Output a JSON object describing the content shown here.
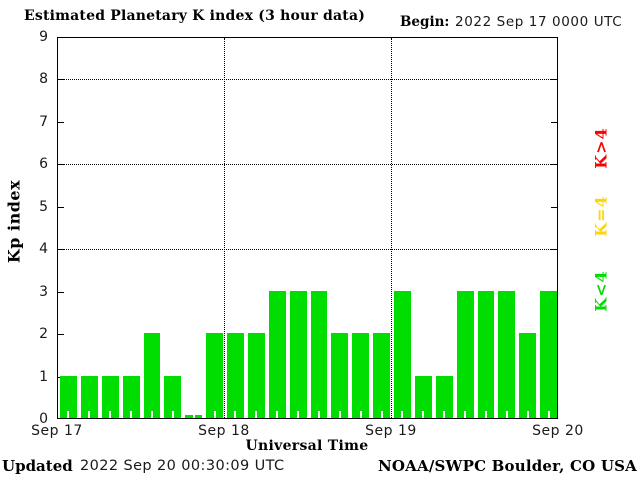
{
  "title": "Estimated Planetary K index (3 hour data)",
  "begin": {
    "label": "Begin:",
    "value": "2022 Sep 17 0000 UTC"
  },
  "footer": {
    "updated_label": "Updated",
    "updated_value": "2022 Sep 20 00:30:09 UTC",
    "credit": "NOAA/SWPC Boulder, CO USA"
  },
  "chart_data": {
    "type": "bar",
    "title": "Estimated Planetary K index (3 hour data)",
    "xlabel": "Universal Time",
    "ylabel": "Kp index",
    "ylim": [
      0,
      9
    ],
    "yticks": [
      0,
      1,
      2,
      3,
      4,
      5,
      6,
      7,
      8,
      9
    ],
    "grid_y_dotted": [
      4,
      6,
      8
    ],
    "grid_x_dotted_at_days": [
      1,
      2
    ],
    "x_tick_labels": [
      "Sep 17",
      "Sep 18",
      "Sep 19",
      "Sep 20"
    ],
    "hours_per_bar": 3,
    "bars_per_day": 8,
    "bar_color": "#00DD00",
    "days": [
      {
        "date": "Sep 17",
        "values": [
          1,
          1,
          1,
          1,
          2,
          1,
          0,
          2
        ]
      },
      {
        "date": "Sep 18",
        "values": [
          2,
          2,
          3,
          3,
          3,
          2,
          2,
          2
        ]
      },
      {
        "date": "Sep 19",
        "values": [
          3,
          1,
          1,
          3,
          3,
          3,
          2,
          3
        ]
      }
    ],
    "legend": [
      {
        "label": "K>4",
        "color": "#FF0000"
      },
      {
        "label": "K=4",
        "color": "#FFD700"
      },
      {
        "label": "K<4",
        "color": "#00DD00"
      }
    ],
    "legend_position": "right-rotated",
    "grid": "dotted"
  }
}
